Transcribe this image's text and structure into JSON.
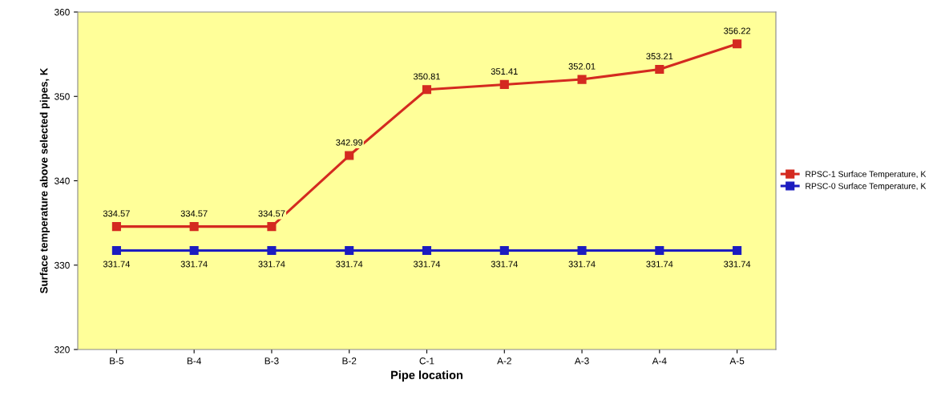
{
  "chart_data": {
    "type": "line",
    "xlabel": "Pipe location",
    "ylabel": "Surface temperature above selected pipes, K",
    "categories": [
      "B-5",
      "B-4",
      "B-3",
      "B-2",
      "C-1",
      "A-2",
      "A-3",
      "A-4",
      "A-5"
    ],
    "series": [
      {
        "name": "RPSC-1 Surface Temperature, K",
        "color": "#d42a20",
        "values": [
          334.57,
          334.57,
          334.57,
          342.99,
          350.81,
          351.41,
          352.01,
          353.21,
          356.22
        ]
      },
      {
        "name": "RPSC-0 Surface Temperature, K",
        "color": "#1c1cc0",
        "values": [
          331.74,
          331.74,
          331.74,
          331.74,
          331.74,
          331.74,
          331.74,
          331.74,
          331.74
        ]
      }
    ],
    "ylim": [
      320,
      360
    ],
    "yticks": [
      320,
      330,
      340,
      350,
      360
    ],
    "grid": false,
    "legend": "right",
    "marker": "square",
    "line_style": "solid",
    "data_labels": true
  }
}
